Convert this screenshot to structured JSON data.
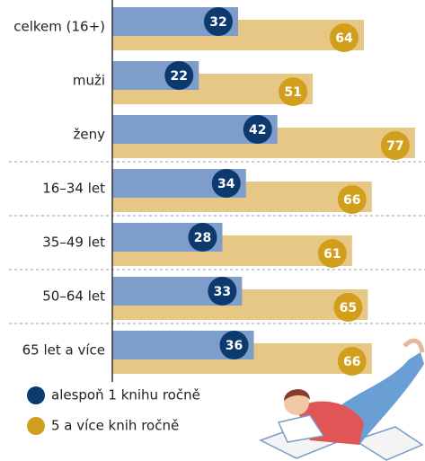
{
  "chart_data": {
    "type": "bar",
    "categories": [
      "celkem (16+)",
      "muži",
      "ženy",
      "16–34 let",
      "35–49 let",
      "50–64 let",
      "65 let a více"
    ],
    "series": [
      {
        "name": "alespoň 1 knihu ročně",
        "color": "#7f9dca",
        "label_color": "#0d3a6e",
        "values": [
          32,
          22,
          42,
          34,
          28,
          33,
          36
        ]
      },
      {
        "name": "5 a více knih ročně",
        "color": "#e6c786",
        "label_color": "#d19f1c",
        "values": [
          64,
          51,
          77,
          66,
          61,
          65,
          66
        ]
      }
    ],
    "xlim": [
      0,
      80
    ]
  }
}
